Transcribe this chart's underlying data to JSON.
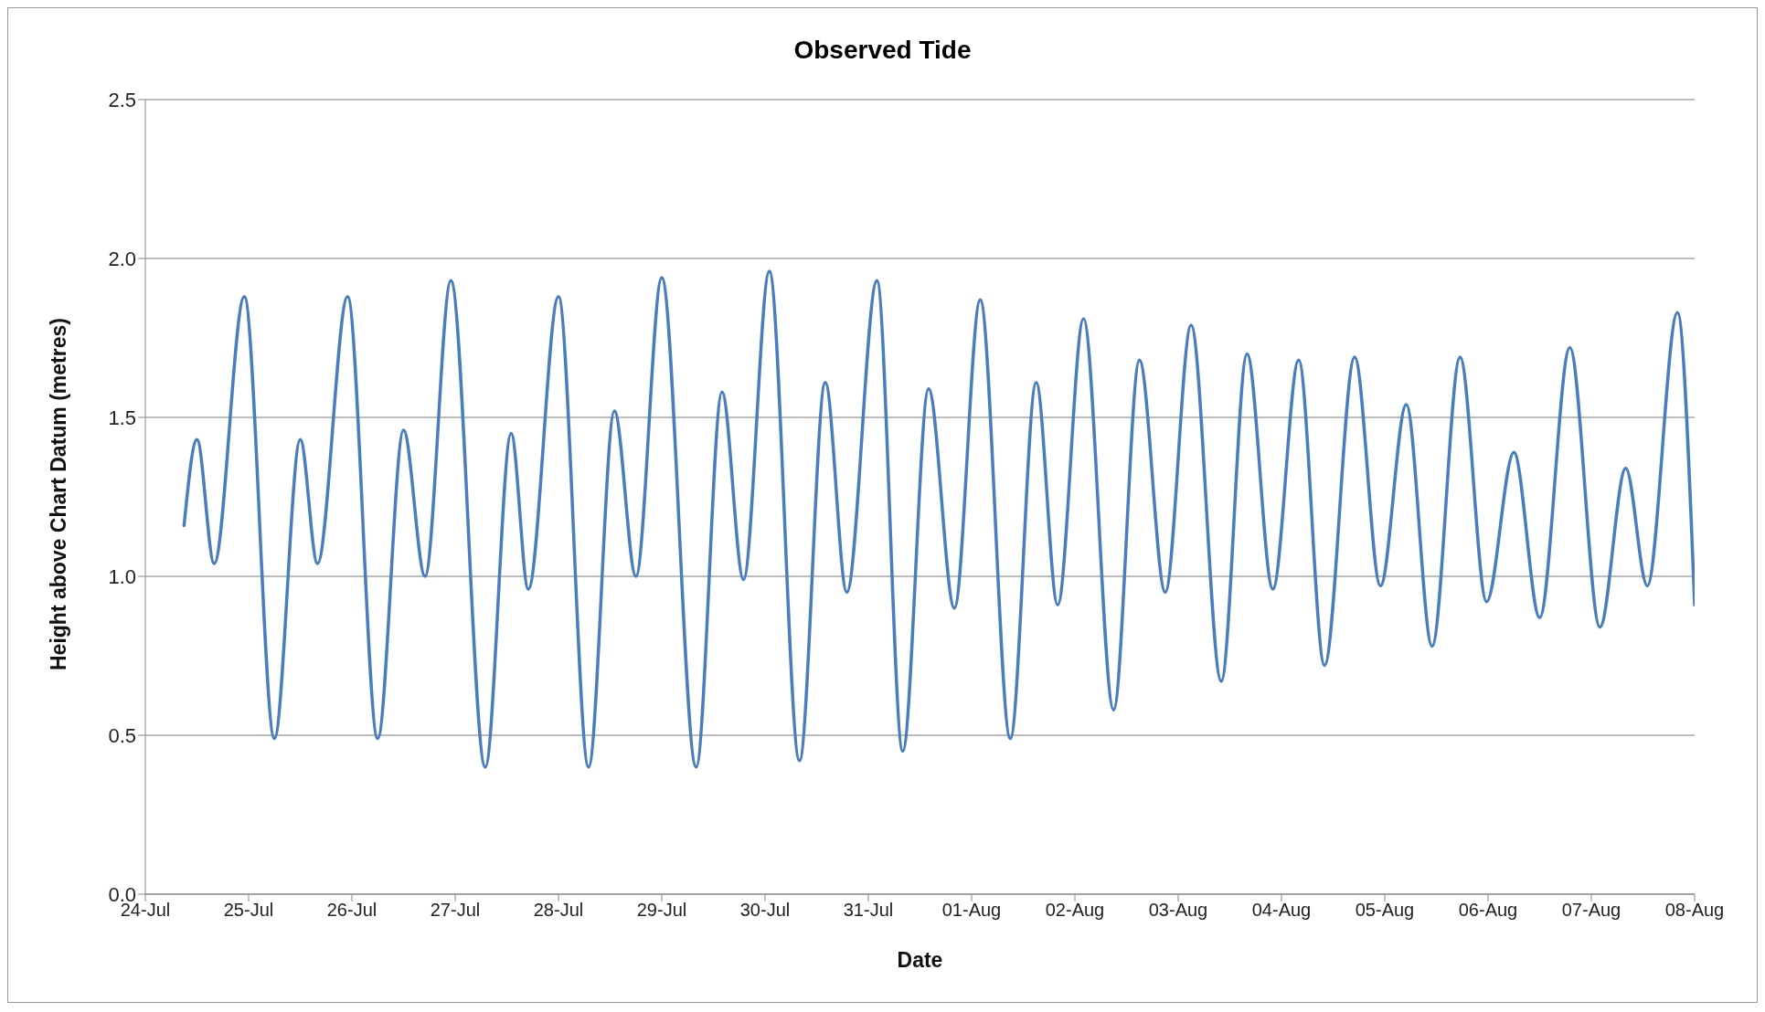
{
  "chart_data": {
    "type": "line",
    "title": "Observed Tide",
    "xlabel": "Date",
    "ylabel": "Height above Chart Datum (metres)",
    "x": [
      "--07-24T09:00",
      "--07-24T12:00",
      "--07-24T16:00",
      "--07-24T23:00",
      "--07-25T06:00",
      "--07-25T12:00",
      "--07-25T16:00",
      "--07-25T23:00",
      "--07-26T06:00",
      "--07-26T12:00",
      "--07-26T17:00",
      "--07-26T23:00",
      "--07-27T07:00",
      "--07-27T13:00",
      "--07-27T17:00",
      "--07-28T00:00",
      "--07-28T07:00",
      "--07-28T13:00",
      "--07-28T18:00",
      "--07-29T00:00",
      "--07-29T08:00",
      "--07-29T14:00",
      "--07-29T19:00",
      "--07-30T01:00",
      "--07-30T08:00",
      "--07-30T14:00",
      "--07-30T19:00",
      "--07-31T02:00",
      "--07-31T08:00",
      "--07-31T14:00",
      "--07-31T20:00",
      "--08-01T02:00",
      "--08-01T09:00",
      "--08-01T15:00",
      "--08-01T20:00",
      "--08-02T02:00",
      "--08-02T09:00",
      "--08-02T15:00",
      "--08-02T21:00",
      "--08-03T03:00",
      "--08-03T10:00",
      "--08-03T16:00",
      "--08-03T22:00",
      "--08-04T04:00",
      "--08-04T10:00",
      "--08-04T17:00",
      "--08-04T23:00",
      "--08-05T05:00",
      "--08-05T11:00",
      "--08-05T17:30",
      "--08-05T23:40",
      "--08-06T06:00",
      "--08-06T12:00",
      "--08-06T19:00",
      "--08-07T02:00",
      "--08-07T08:00",
      "--08-07T13:00",
      "--08-07T20:00",
      "--08-08T00:00"
    ],
    "series": [
      {
        "color": "#4a7ebb",
        "values": [
          1.16,
          1.43,
          1.04,
          1.88,
          0.49,
          1.43,
          1.04,
          1.88,
          0.49,
          1.46,
          1.0,
          1.93,
          0.4,
          1.45,
          0.96,
          1.88,
          0.4,
          1.52,
          1.0,
          1.94,
          0.4,
          1.58,
          0.99,
          1.96,
          0.42,
          1.61,
          0.95,
          1.93,
          0.45,
          1.59,
          0.9,
          1.87,
          0.49,
          1.61,
          0.91,
          1.81,
          0.58,
          1.68,
          0.95,
          1.79,
          0.67,
          1.7,
          0.96,
          1.68,
          0.72,
          1.69,
          0.97,
          1.54,
          0.78,
          1.69,
          0.92,
          1.39,
          0.87,
          1.72,
          0.84,
          1.34,
          0.97,
          1.83,
          0.91
        ]
      }
    ],
    "xlim": [
      "--07-24",
      "--08-08"
    ],
    "xticks": [
      {
        "value": "--07-24",
        "label": "24-Jul"
      },
      {
        "value": "--07-25",
        "label": "25-Jul"
      },
      {
        "value": "--07-26",
        "label": "26-Jul"
      },
      {
        "value": "--07-27",
        "label": "27-Jul"
      },
      {
        "value": "--07-28",
        "label": "28-Jul"
      },
      {
        "value": "--07-29",
        "label": "29-Jul"
      },
      {
        "value": "--07-30",
        "label": "30-Jul"
      },
      {
        "value": "--07-31",
        "label": "31-Jul"
      },
      {
        "value": "--08-01",
        "label": "01-Aug"
      },
      {
        "value": "--08-02",
        "label": "02-Aug"
      },
      {
        "value": "--08-03",
        "label": "03-Aug"
      },
      {
        "value": "--08-04",
        "label": "04-Aug"
      },
      {
        "value": "--08-05",
        "label": "05-Aug"
      },
      {
        "value": "--08-06",
        "label": "06-Aug"
      },
      {
        "value": "--08-07",
        "label": "07-Aug"
      },
      {
        "value": "--08-08",
        "label": "08-Aug"
      }
    ],
    "ylim": [
      0,
      2.5
    ],
    "yticks": [
      {
        "value": 0,
        "label": "0.0"
      },
      {
        "value": 0.5,
        "label": "0.5"
      },
      {
        "value": 1,
        "label": "1.0"
      },
      {
        "value": 1.5,
        "label": "1.5"
      },
      {
        "value": 2,
        "label": "2.0"
      },
      {
        "value": 2.5,
        "label": "2.5"
      }
    ],
    "grid": "y",
    "legend": false,
    "marker": "none",
    "line_style": "solid"
  }
}
